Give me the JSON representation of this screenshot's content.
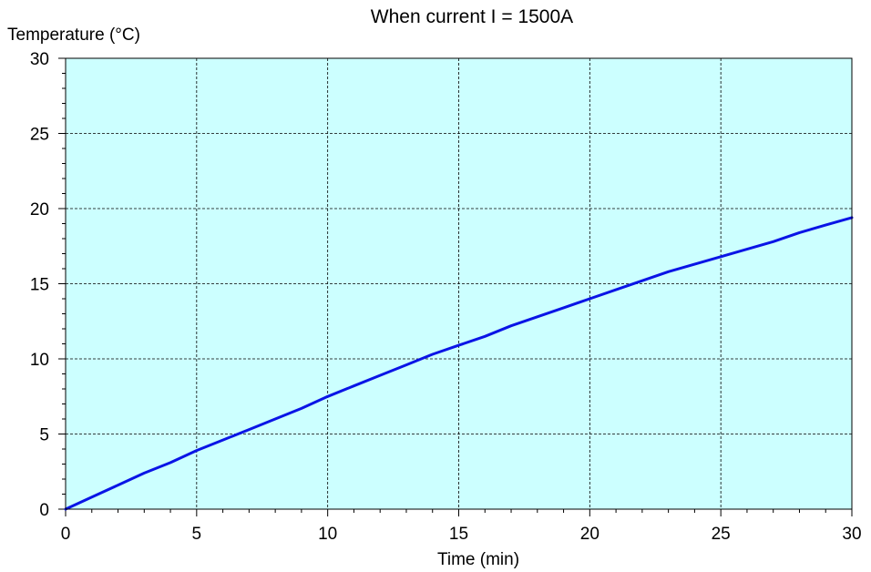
{
  "chart_data": {
    "type": "line",
    "title": "When current  I = 1500A",
    "xlabel": "Time (min)",
    "ylabel": "Temperature (°C)",
    "xlim": [
      0,
      30
    ],
    "ylim": [
      0,
      30
    ],
    "xticks": [
      0,
      5,
      10,
      15,
      20,
      25,
      30
    ],
    "yticks": [
      0,
      5,
      10,
      15,
      20,
      25,
      30
    ],
    "grid": true,
    "colors": {
      "plot_background": "#ccffff",
      "line": "#0a14e6",
      "grid": "#000000"
    },
    "series": [
      {
        "x": [
          0,
          1,
          2,
          3,
          4,
          5,
          6,
          7,
          8,
          9,
          10,
          11,
          12,
          13,
          14,
          15,
          16,
          17,
          18,
          19,
          20,
          21,
          22,
          23,
          24,
          25,
          26,
          27,
          28,
          29,
          30
        ],
        "y": [
          0,
          0.8,
          1.6,
          2.4,
          3.1,
          3.9,
          4.6,
          5.3,
          6.0,
          6.7,
          7.5,
          8.2,
          8.9,
          9.6,
          10.3,
          10.9,
          11.5,
          12.2,
          12.8,
          13.4,
          14.0,
          14.6,
          15.2,
          15.8,
          16.3,
          16.8,
          17.3,
          17.8,
          18.4,
          18.9,
          19.4
        ]
      }
    ]
  }
}
